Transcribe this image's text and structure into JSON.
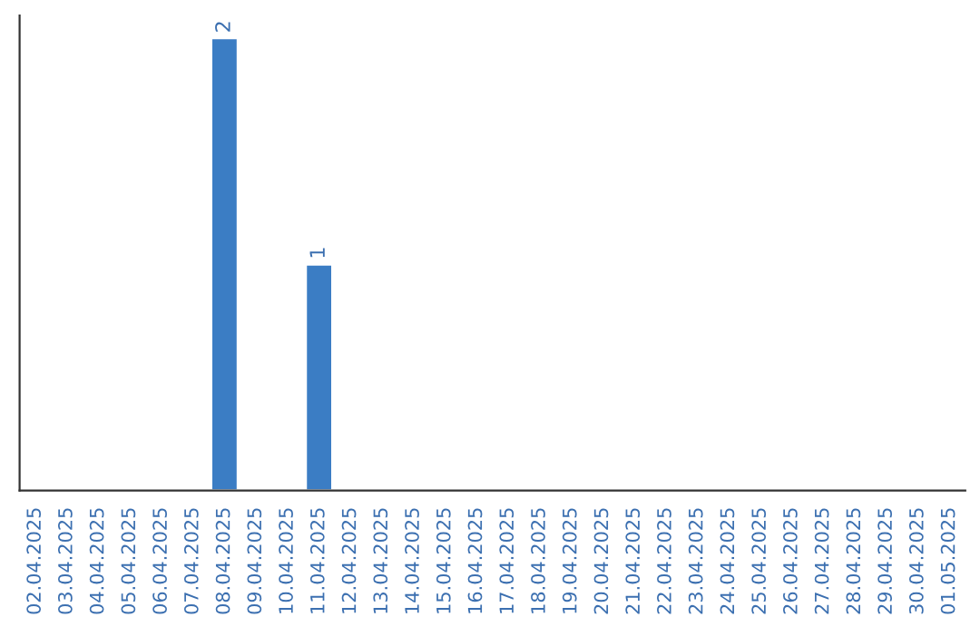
{
  "chart_data": {
    "type": "bar",
    "categories": [
      "02.04.2025",
      "03.04.2025",
      "04.04.2025",
      "05.04.2025",
      "06.04.2025",
      "07.04.2025",
      "08.04.2025",
      "09.04.2025",
      "10.04.2025",
      "11.04.2025",
      "12.04.2025",
      "13.04.2025",
      "14.04.2025",
      "15.04.2025",
      "16.04.2025",
      "17.04.2025",
      "18.04.2025",
      "19.04.2025",
      "20.04.2025",
      "21.04.2025",
      "22.04.2025",
      "23.04.2025",
      "24.04.2025",
      "25.04.2025",
      "26.04.2025",
      "27.04.2025",
      "28.04.2025",
      "29.04.2025",
      "30.04.2025",
      "01.05.2025"
    ],
    "values": [
      0,
      0,
      0,
      0,
      0,
      0,
      2,
      0,
      0,
      1,
      0,
      0,
      0,
      0,
      0,
      0,
      0,
      0,
      0,
      0,
      0,
      0,
      0,
      0,
      0,
      0,
      0,
      0,
      0,
      0
    ],
    "value_labels": [
      null,
      null,
      null,
      null,
      null,
      null,
      "2",
      null,
      null,
      "1",
      null,
      null,
      null,
      null,
      null,
      null,
      null,
      null,
      null,
      null,
      null,
      null,
      null,
      null,
      null,
      null,
      null,
      null,
      null,
      null
    ],
    "color": "#3b7dc4",
    "tick_labels": "x",
    "grid": false,
    "legend": false
  }
}
